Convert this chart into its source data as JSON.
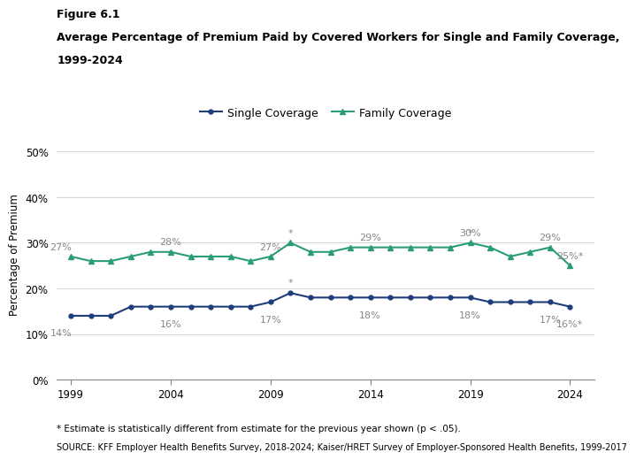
{
  "years": [
    1999,
    2000,
    2001,
    2002,
    2003,
    2004,
    2005,
    2006,
    2007,
    2008,
    2009,
    2010,
    2011,
    2012,
    2013,
    2014,
    2015,
    2016,
    2017,
    2018,
    2019,
    2020,
    2021,
    2022,
    2023,
    2024
  ],
  "single_coverage": [
    14,
    14,
    14,
    16,
    16,
    16,
    16,
    16,
    16,
    16,
    17,
    19,
    18,
    18,
    18,
    18,
    18,
    18,
    18,
    18,
    18,
    17,
    17,
    17,
    17,
    16
  ],
  "family_coverage": [
    27,
    26,
    26,
    27,
    28,
    28,
    27,
    27,
    27,
    26,
    27,
    30,
    28,
    28,
    29,
    29,
    29,
    29,
    29,
    29,
    30,
    29,
    27,
    28,
    29,
    25
  ],
  "single_starred_years": [
    2010,
    2024
  ],
  "family_starred_years": [
    2010,
    2019,
    2024
  ],
  "single_label_years": [
    1999,
    2004,
    2009,
    2014,
    2019,
    2023,
    2024
  ],
  "single_label_texts": [
    "14%",
    "16%",
    "17%",
    "18%",
    "18%",
    "17%",
    "16%*"
  ],
  "family_label_years": [
    1999,
    2004,
    2009,
    2014,
    2019,
    2023,
    2024
  ],
  "family_label_texts": [
    "27%",
    "28%",
    "27%",
    "29%",
    "30%",
    "29%",
    "25%*"
  ],
  "single_color": "#1f3d7a",
  "family_color": "#2a9d78",
  "ylabel": "Percentage of Premium",
  "yticks": [
    0,
    10,
    20,
    30,
    40,
    50
  ],
  "xticks": [
    1999,
    2004,
    2009,
    2014,
    2019,
    2024
  ],
  "xlim": [
    1998.3,
    2025.2
  ],
  "ylim": [
    0,
    55
  ],
  "title_line1": "Figure 6.1",
  "title_line2": "Average Percentage of Premium Paid by Covered Workers for Single and Family Coverage,",
  "title_line3": "1999-2024",
  "legend_labels": [
    "Single Coverage",
    "Family Coverage"
  ],
  "footnote1": "* Estimate is statistically different from estimate for the previous year shown (p < .05).",
  "footnote2": "SOURCE: KFF Employer Health Benefits Survey, 2018-2024; Kaiser/HRET Survey of Employer-Sponsored Health Benefits, 1999-2017"
}
